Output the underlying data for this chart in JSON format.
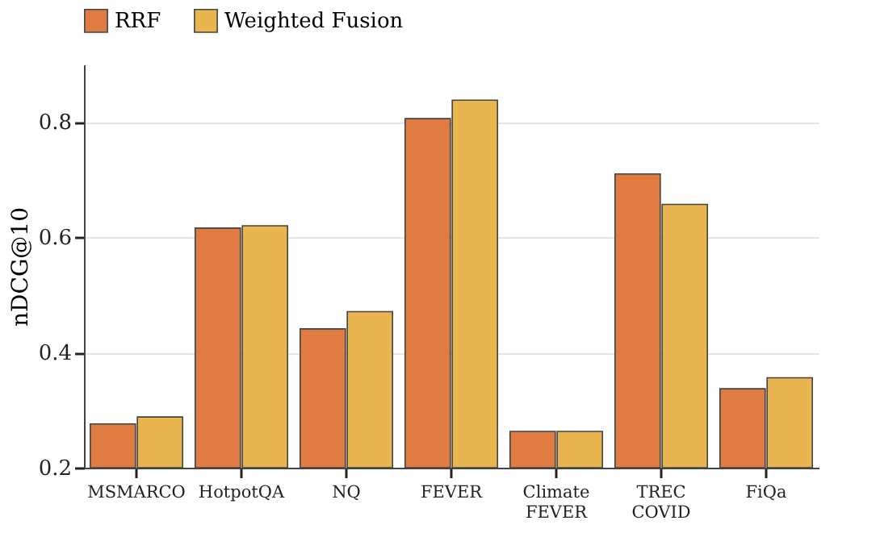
{
  "chart_data": {
    "type": "bar",
    "ylabel": "nDCG@10",
    "categories": [
      "MSMARCO",
      "HotpotQA",
      "NQ",
      "FEVER",
      "Climate\nFEVER",
      "TREC\nCOVID",
      "FiQa"
    ],
    "series": [
      {
        "name": "RRF",
        "color": "#e07b42",
        "values": [
          0.276,
          0.616,
          0.441,
          0.806,
          0.263,
          0.71,
          0.337
        ]
      },
      {
        "name": "Weighted Fusion",
        "color": "#e8b54e",
        "values": [
          0.288,
          0.62,
          0.471,
          0.838,
          0.263,
          0.657,
          0.356
        ]
      }
    ],
    "ylim": [
      0.2,
      0.9
    ],
    "yticks": [
      0.2,
      0.4,
      0.6,
      0.8
    ],
    "grid": "y",
    "legend": "top"
  }
}
